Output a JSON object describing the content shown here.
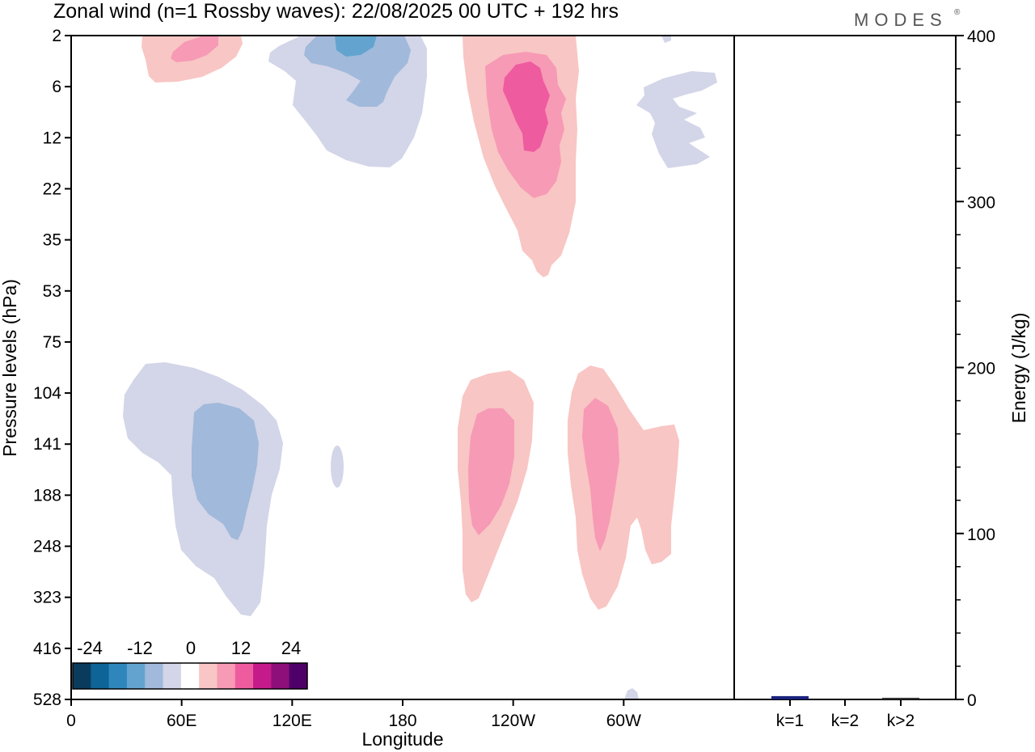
{
  "header": {
    "title": "Zonal wind (n=1 Rossby waves):  22/08/2025  00 UTC  + 192 hrs",
    "brand": "MODES",
    "brand_mark": "®"
  },
  "chart_data": [
    {
      "type": "heatmap",
      "title": "Zonal wind (n=1 Rossby waves):  22/08/2025  00 UTC  + 192 hrs",
      "xlabel": "Longitude",
      "ylabel": "Pressure levels (hPa)",
      "x_ticks": [
        "0",
        "60E",
        "120E",
        "180",
        "120W",
        "60W"
      ],
      "x_range_deg": [
        0,
        360
      ],
      "y_ticks": [
        "2",
        "6",
        "12",
        "22",
        "35",
        "53",
        "75",
        "104",
        "141",
        "188",
        "248",
        "323",
        "416",
        "528"
      ],
      "colorbar": {
        "labels": [
          "-24",
          "-12",
          "0",
          "12",
          "24"
        ],
        "levels": [
          -24,
          -12,
          0,
          12,
          24
        ],
        "colors": [
          "#0b3b5c",
          "#0f6497",
          "#2f86bd",
          "#62a4cf",
          "#a1b9da",
          "#d3d5e8",
          "#ffffff",
          "#f8c6c4",
          "#f79ab5",
          "#ef5b9f",
          "#c51b8a",
          "#8e0f7a",
          "#4f0068"
        ]
      },
      "features": [
        {
          "name": "positive-anomaly-upper-60e",
          "level": 1,
          "color": "#f8c6c4"
        },
        {
          "name": "positive-core-upper-60e",
          "level": 2,
          "color": "#f79ab5"
        },
        {
          "name": "negative-anomaly-upper-150e",
          "level": 1,
          "color": "#d3d5e8"
        },
        {
          "name": "negative-mid-upper-150e",
          "level": 2,
          "color": "#a1b9da"
        },
        {
          "name": "negative-core-upper-150e",
          "level": 3,
          "color": "#62a4cf"
        },
        {
          "name": "positive-anomaly-upper-120w",
          "level": 1,
          "color": "#f8c6c4"
        },
        {
          "name": "positive-mid-upper-120w",
          "level": 2,
          "color": "#f79ab5"
        },
        {
          "name": "positive-core-upper-120w",
          "level": 3,
          "color": "#ef5b9f"
        },
        {
          "name": "negative-anomaly-upper-30w",
          "level": 1,
          "color": "#d3d5e8"
        },
        {
          "name": "negative-anomaly-lower-60e",
          "level": 1,
          "color": "#d3d5e8"
        },
        {
          "name": "negative-core-lower-60e",
          "level": 2,
          "color": "#a1b9da"
        },
        {
          "name": "negative-anomaly-lower-150e",
          "level": 1,
          "color": "#d3d5e8"
        },
        {
          "name": "positive-anomaly-lower-120w",
          "level": 1,
          "color": "#f8c6c4"
        },
        {
          "name": "positive-core-lower-120w",
          "level": 2,
          "color": "#f79ab5"
        },
        {
          "name": "positive-anomaly-lower-60w",
          "level": 1,
          "color": "#f8c6c4"
        },
        {
          "name": "positive-core-lower-60w",
          "level": 2,
          "color": "#f79ab5"
        },
        {
          "name": "negative-anomaly-surface-60w",
          "level": 1,
          "color": "#d3d5e8"
        }
      ]
    },
    {
      "type": "bar",
      "ylabel": "Energy (J/kg)",
      "ylim": [
        0,
        400
      ],
      "y_ticks": [
        "0",
        "100",
        "200",
        "300",
        "400"
      ],
      "categories": [
        "k=1",
        "k=2",
        "k>2"
      ],
      "values": [
        2,
        0,
        1
      ],
      "bar_colors": [
        "#1a237e",
        "#1a237e",
        "#333333"
      ]
    }
  ]
}
